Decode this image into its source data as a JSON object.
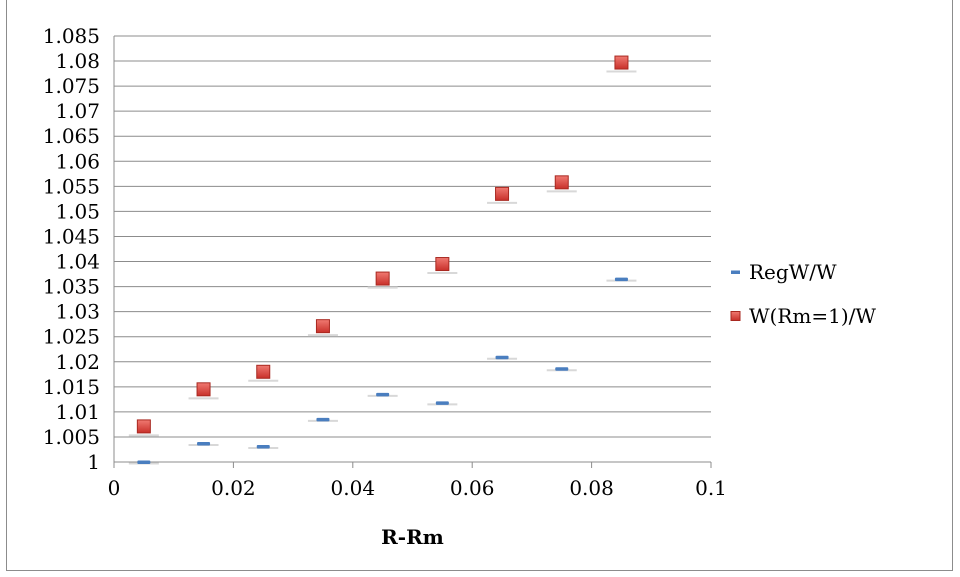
{
  "chart_data": {
    "type": "scatter",
    "xlabel": "R-Rm",
    "ylabel": "",
    "xlim": [
      0,
      0.1
    ],
    "ylim": [
      1,
      1.085
    ],
    "x_ticks": [
      "0",
      "0.02",
      "0.04",
      "0.06",
      "0.08",
      "0.1"
    ],
    "y_ticks": [
      "1",
      "1.005",
      "1.01",
      "1.015",
      "1.02",
      "1.025",
      "1.03",
      "1.035",
      "1.04",
      "1.045",
      "1.05",
      "1.055",
      "1.06",
      "1.065",
      "1.07",
      "1.075",
      "1.08",
      "1.085"
    ],
    "grid": "horizontal",
    "legend_position": "right",
    "series": [
      {
        "name": "RegW/W",
        "marker": "dash",
        "color": "#4a7ebf",
        "x": [
          0.005,
          0.015,
          0.025,
          0.035,
          0.045,
          0.055,
          0.065,
          0.075,
          0.085
        ],
        "y": [
          1.0,
          1.0037,
          1.0031,
          1.0085,
          1.0135,
          1.0118,
          1.0209,
          1.0186,
          1.0365
        ]
      },
      {
        "name": "W(Rm=1)/W",
        "marker": "square",
        "color": "#d53b33",
        "x": [
          0.005,
          0.015,
          0.025,
          0.035,
          0.045,
          0.055,
          0.065,
          0.075,
          0.085
        ],
        "y": [
          1.0071,
          1.0145,
          1.018,
          1.0271,
          1.0366,
          1.0395,
          1.0535,
          1.0558,
          1.0797
        ]
      }
    ]
  }
}
